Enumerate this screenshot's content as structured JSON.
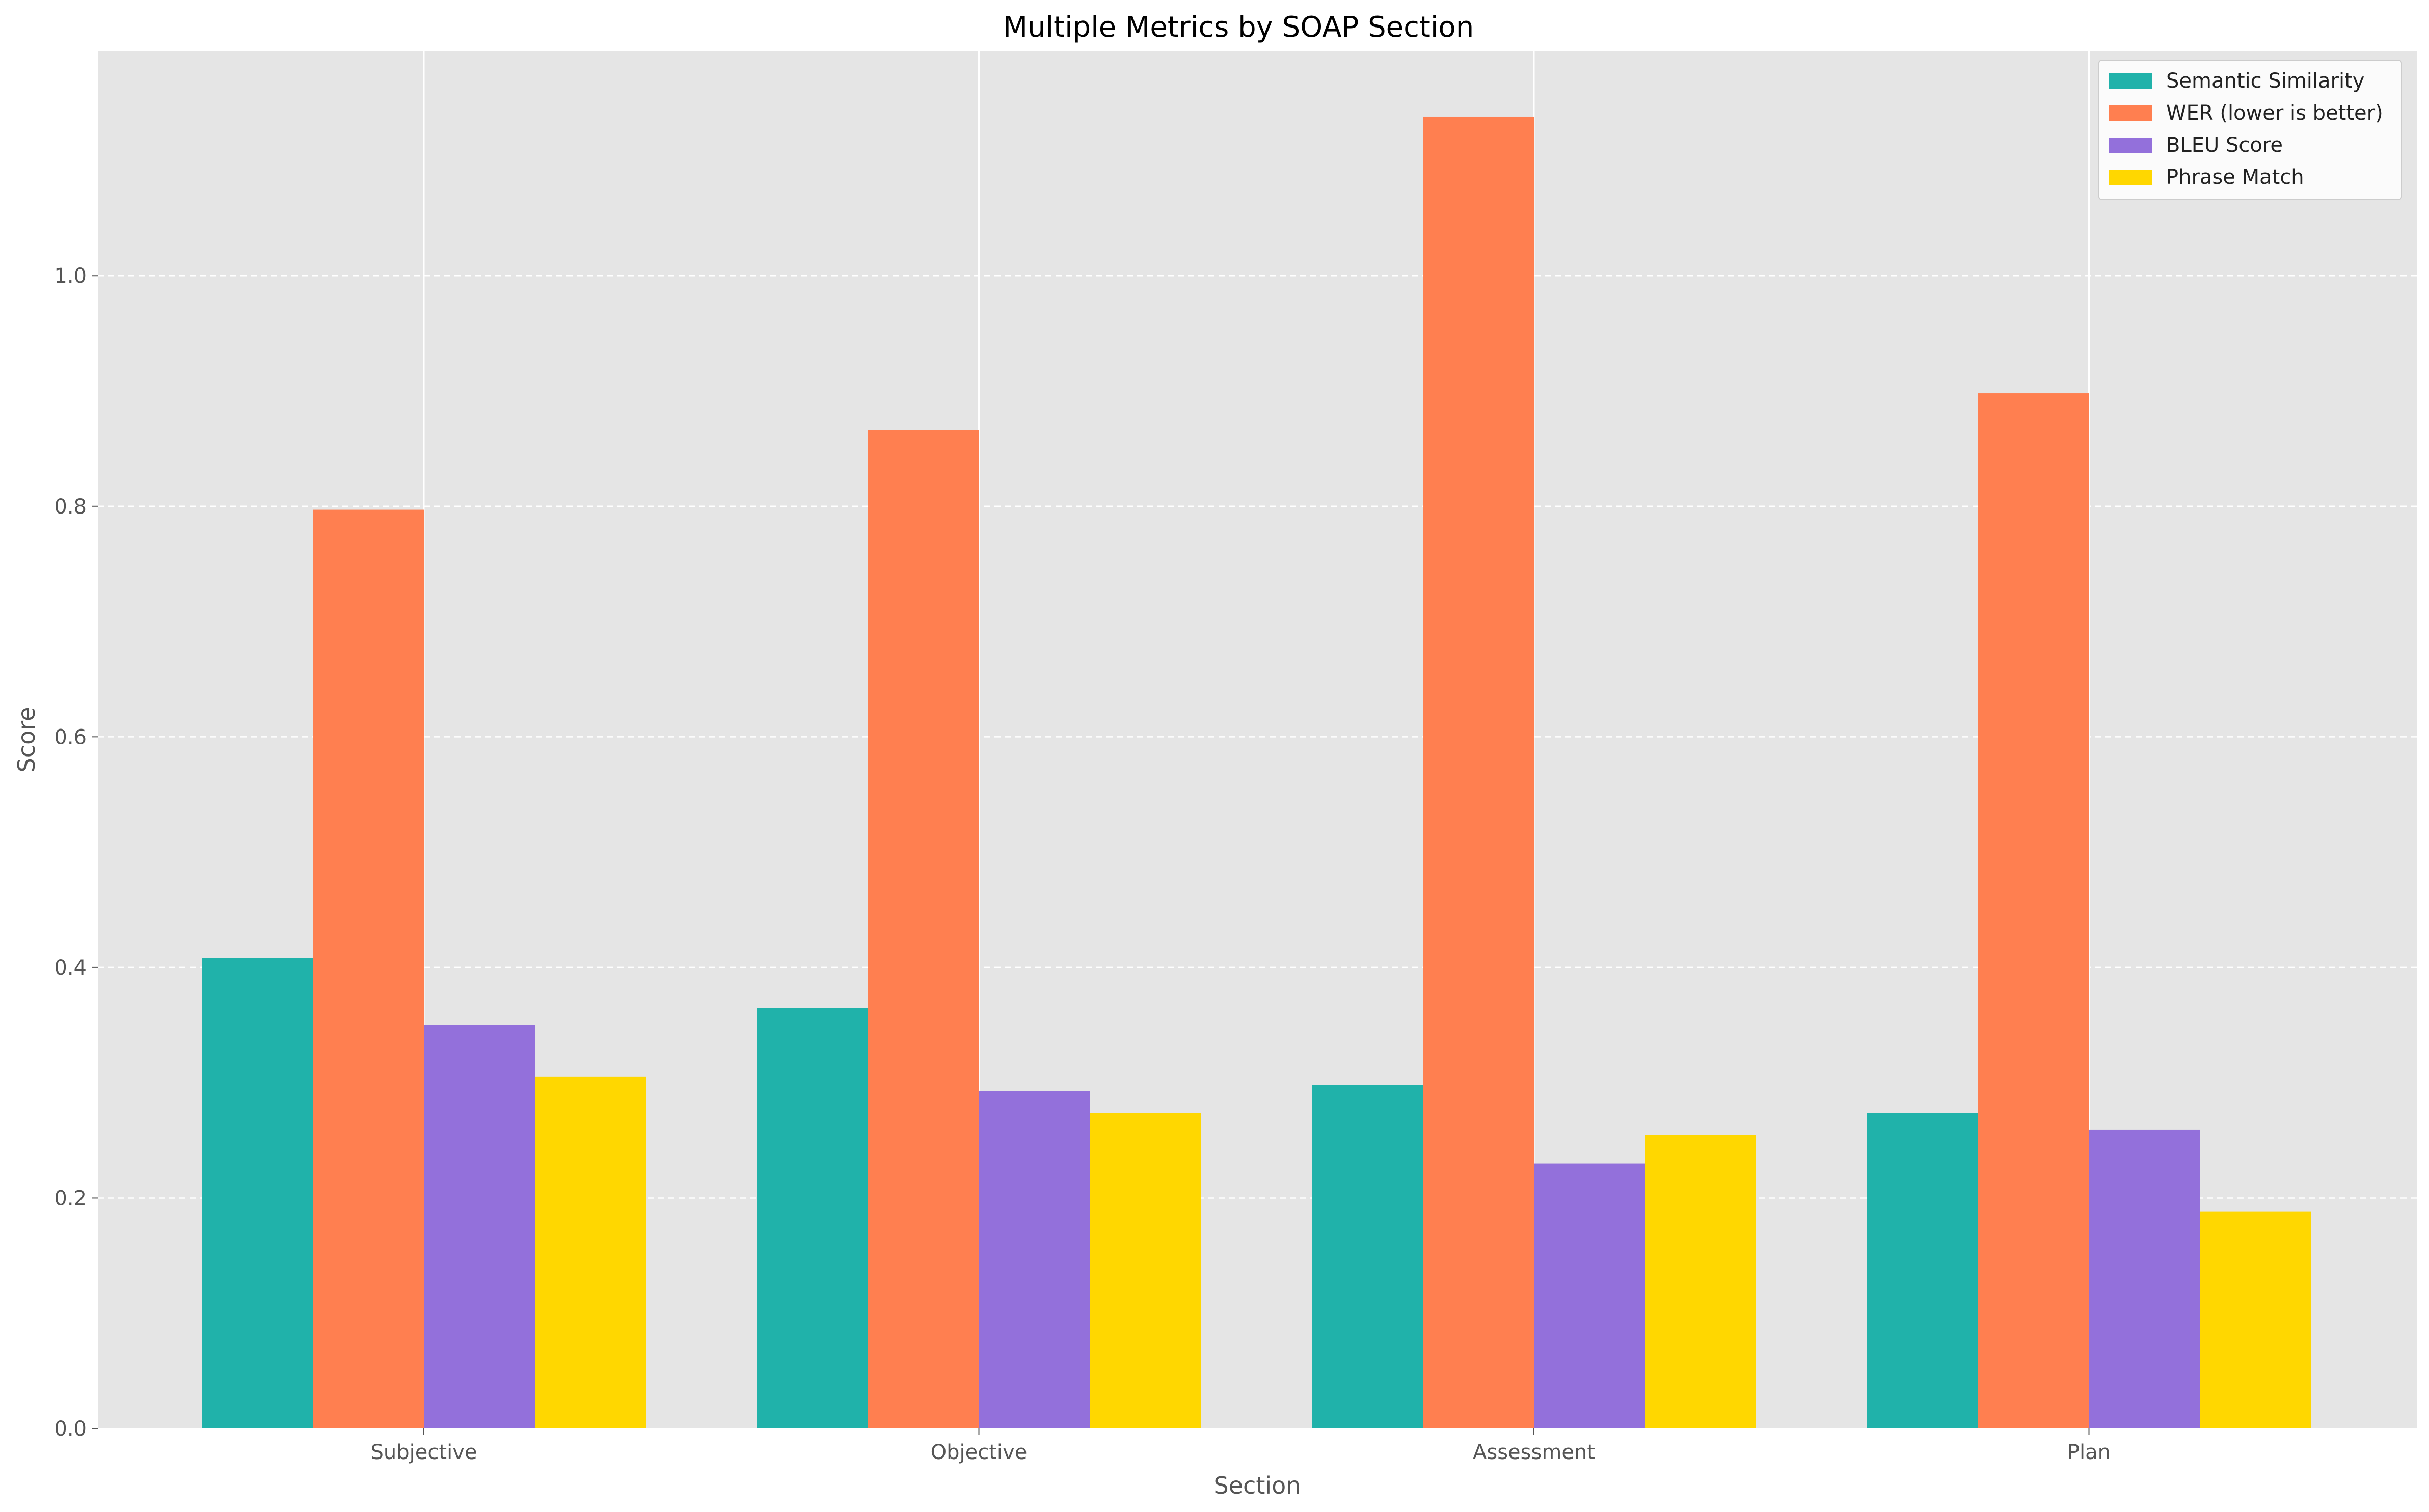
{
  "chart_data": {
    "type": "bar",
    "title": "Multiple Metrics by SOAP Section",
    "xlabel": "Section",
    "ylabel": "Score",
    "categories": [
      "Subjective",
      "Objective",
      "Assessment",
      "Plan"
    ],
    "series": [
      {
        "name": "Semantic Similarity",
        "color": "#20B2AA",
        "values": [
          0.408,
          0.365,
          0.298,
          0.274
        ]
      },
      {
        "name": "WER (lower is better)",
        "color": "#FF7F50",
        "values": [
          0.797,
          0.866,
          1.138,
          0.898
        ]
      },
      {
        "name": "BLEU Score",
        "color": "#9370DB",
        "values": [
          0.35,
          0.293,
          0.23,
          0.259
        ]
      },
      {
        "name": "Phrase Match",
        "color": "#FFD700",
        "values": [
          0.305,
          0.274,
          0.255,
          0.188
        ]
      }
    ],
    "yticks": [
      0.0,
      0.2,
      0.4,
      0.6,
      0.8,
      1.0
    ],
    "ylim": [
      0,
      1.195
    ],
    "grid": true,
    "legend_position": "top-right",
    "background": "#E5E5E5"
  }
}
